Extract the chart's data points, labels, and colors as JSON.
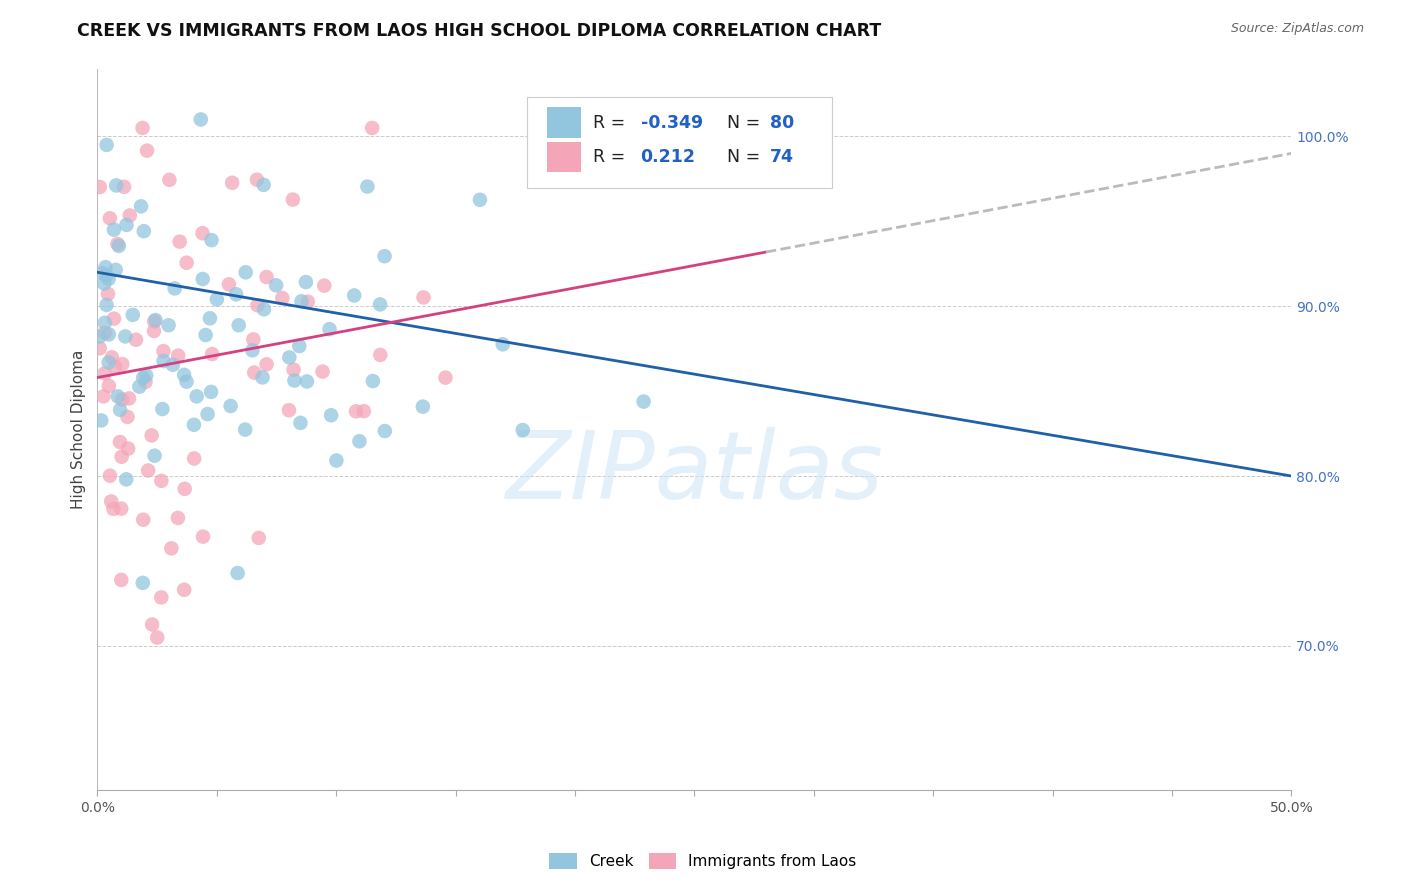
{
  "title": "CREEK VS IMMIGRANTS FROM LAOS HIGH SCHOOL DIPLOMA CORRELATION CHART",
  "source": "Source: ZipAtlas.com",
  "ylabel": "High School Diploma",
  "xlim": [
    0.0,
    0.5
  ],
  "ylim": [
    0.615,
    1.04
  ],
  "x_ticks": [
    0.0,
    0.05,
    0.1,
    0.15,
    0.2,
    0.25,
    0.3,
    0.35,
    0.4,
    0.45,
    0.5
  ],
  "x_tick_labels": [
    "0.0%",
    "",
    "",
    "",
    "",
    "",
    "",
    "",
    "",
    "",
    "50.0%"
  ],
  "y_ticks_right": [
    0.7,
    0.8,
    0.9,
    1.0
  ],
  "y_tick_labels_right": [
    "70.0%",
    "80.0%",
    "90.0%",
    "100.0%"
  ],
  "watermark": "ZIPatlas",
  "legend_r_creek": "-0.349",
  "legend_n_creek": "80",
  "legend_r_laos": "0.212",
  "legend_n_laos": "74",
  "creek_color": "#92c5de",
  "laos_color": "#f4a6b8",
  "creek_line_color": "#2060a8",
  "laos_line_color": "#d44080",
  "background_color": "#ffffff",
  "creek_line_x0": 0.0,
  "creek_line_y0": 0.92,
  "creek_line_x1": 0.5,
  "creek_line_y1": 0.8,
  "laos_line_x0": 0.0,
  "laos_line_y0": 0.858,
  "laos_line_x1_solid": 0.28,
  "laos_line_x1": 0.5,
  "laos_line_y1": 0.99
}
